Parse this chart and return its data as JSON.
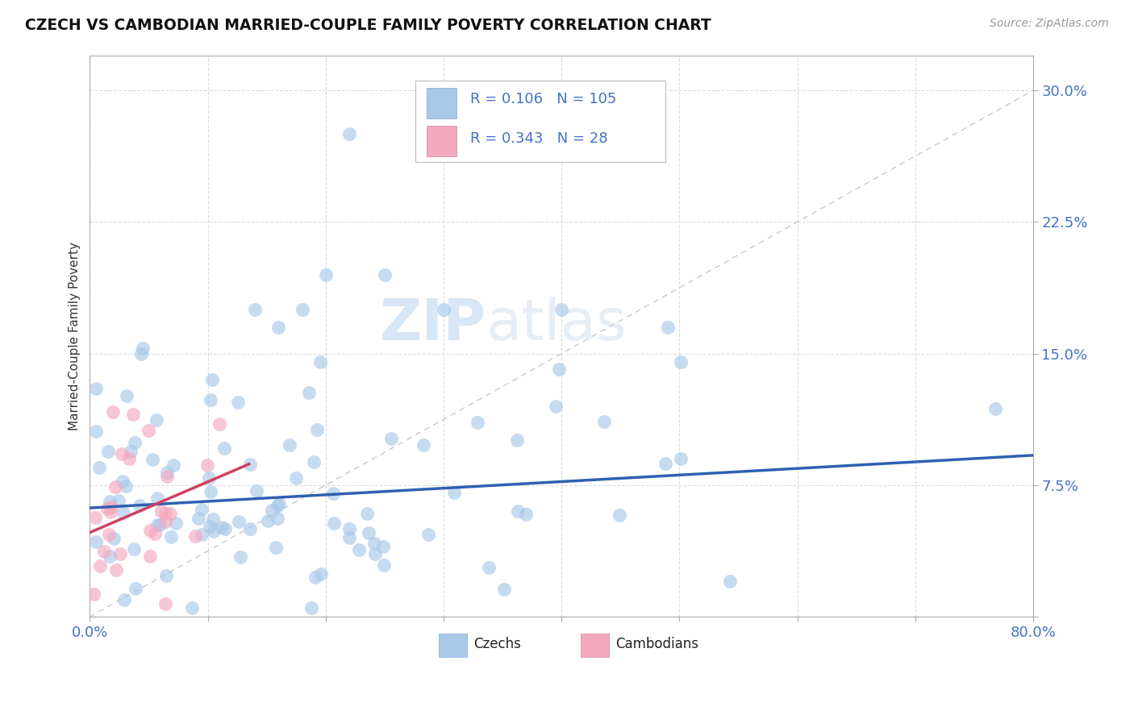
{
  "title": "CZECH VS CAMBODIAN MARRIED-COUPLE FAMILY POVERTY CORRELATION CHART",
  "source": "Source: ZipAtlas.com",
  "ylabel": "Married-Couple Family Poverty",
  "xlim": [
    0.0,
    0.8
  ],
  "ylim": [
    0.0,
    0.32
  ],
  "xtick_positions": [
    0.0,
    0.1,
    0.2,
    0.3,
    0.4,
    0.5,
    0.6,
    0.7,
    0.8
  ],
  "xticklabels": [
    "0.0%",
    "",
    "",
    "",
    "",
    "",
    "",
    "",
    "80.0%"
  ],
  "ytick_positions": [
    0.0,
    0.075,
    0.15,
    0.225,
    0.3
  ],
  "yticklabels": [
    "",
    "7.5%",
    "15.0%",
    "22.5%",
    "30.0%"
  ],
  "legend_r_czech": "0.106",
  "legend_n_czech": "105",
  "legend_r_cambodian": "0.343",
  "legend_n_cambodian": "28",
  "czech_color": "#a8c8e8",
  "cambodian_color": "#f4a8be",
  "czech_line_color": "#3060b0",
  "cambodian_line_color": "#d04060",
  "diag_color": "#c8c8c8",
  "watermark1": "ZIP",
  "watermark2": "atlas",
  "seed": 12345
}
